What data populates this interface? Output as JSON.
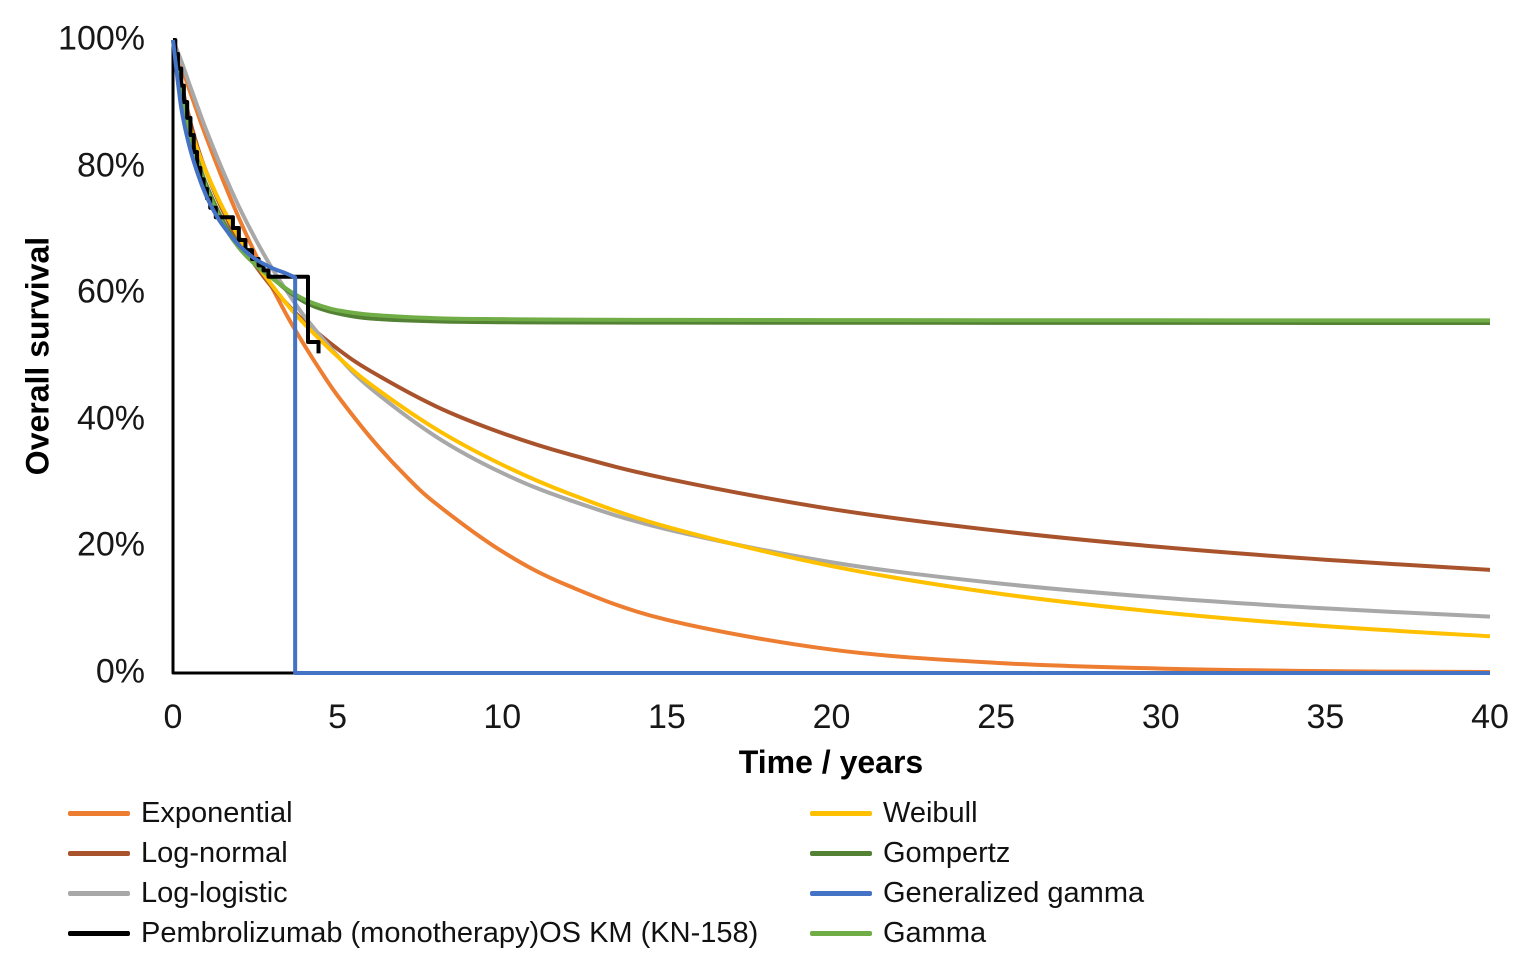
{
  "chart_data": {
    "type": "line",
    "title": "",
    "xlabel": "Time / years",
    "ylabel": "Overall survival",
    "xlim": [
      0,
      40
    ],
    "ylim": [
      0,
      1
    ],
    "grid": false,
    "x_ticks": [
      0,
      5,
      10,
      15,
      20,
      25,
      30,
      35,
      40
    ],
    "y_ticks": [
      "0%",
      "20%",
      "40%",
      "60%",
      "80%",
      "100%"
    ],
    "y_tick_values": [
      0,
      0.2,
      0.4,
      0.6,
      0.8,
      1.0
    ],
    "legend_position": "bottom-two-columns",
    "series": [
      {
        "name": "Exponential",
        "color": "#ED7D31",
        "style": "smooth",
        "points": [
          [
            0,
            1
          ],
          [
            0.25,
            0.96
          ],
          [
            0.5,
            0.921
          ],
          [
            0.75,
            0.884
          ],
          [
            1,
            0.848
          ],
          [
            1.5,
            0.781
          ],
          [
            2,
            0.719
          ],
          [
            2.5,
            0.662
          ],
          [
            3,
            0.61
          ],
          [
            3.5,
            0.561
          ],
          [
            4,
            0.517
          ],
          [
            4.5,
            0.476
          ],
          [
            5,
            0.438
          ],
          [
            6,
            0.372
          ],
          [
            7,
            0.315
          ],
          [
            8,
            0.267
          ],
          [
            10,
            0.192
          ],
          [
            12,
            0.138
          ],
          [
            15,
            0.084
          ],
          [
            20,
            0.037
          ],
          [
            25,
            0.016
          ],
          [
            30,
            0.007
          ],
          [
            35,
            0.003
          ],
          [
            40,
            0.0015
          ]
        ]
      },
      {
        "name": "Log-normal",
        "color": "#A9532C",
        "style": "smooth",
        "points": [
          [
            0,
            1
          ],
          [
            0.25,
            0.932
          ],
          [
            0.5,
            0.876
          ],
          [
            0.75,
            0.83
          ],
          [
            1,
            0.793
          ],
          [
            1.5,
            0.732
          ],
          [
            2,
            0.683
          ],
          [
            2.5,
            0.644
          ],
          [
            3,
            0.61
          ],
          [
            3.5,
            0.581
          ],
          [
            4,
            0.555
          ],
          [
            5,
            0.512
          ],
          [
            6,
            0.477
          ],
          [
            8,
            0.421
          ],
          [
            10,
            0.379
          ],
          [
            12,
            0.346
          ],
          [
            15,
            0.307
          ],
          [
            20,
            0.259
          ],
          [
            25,
            0.225
          ],
          [
            30,
            0.199
          ],
          [
            35,
            0.179
          ],
          [
            40,
            0.163
          ]
        ]
      },
      {
        "name": "Log-logistic",
        "color": "#A8A8A8",
        "style": "smooth",
        "points": [
          [
            0,
            1
          ],
          [
            0.25,
            0.967
          ],
          [
            0.5,
            0.93
          ],
          [
            0.75,
            0.894
          ],
          [
            1,
            0.859
          ],
          [
            1.5,
            0.795
          ],
          [
            2,
            0.737
          ],
          [
            2.5,
            0.686
          ],
          [
            3,
            0.64
          ],
          [
            3.5,
            0.6
          ],
          [
            4,
            0.563
          ],
          [
            5,
            0.501
          ],
          [
            6,
            0.45
          ],
          [
            8,
            0.373
          ],
          [
            10,
            0.316
          ],
          [
            12,
            0.274
          ],
          [
            15,
            0.227
          ],
          [
            20,
            0.175
          ],
          [
            25,
            0.142
          ],
          [
            30,
            0.119
          ],
          [
            35,
            0.102
          ],
          [
            40,
            0.089
          ]
        ]
      },
      {
        "name": "Weibull",
        "color": "#FFC000",
        "style": "smooth",
        "points": [
          [
            0,
            1
          ],
          [
            0.25,
            0.914
          ],
          [
            0.5,
            0.865
          ],
          [
            0.75,
            0.826
          ],
          [
            1,
            0.793
          ],
          [
            1.5,
            0.736
          ],
          [
            2,
            0.689
          ],
          [
            2.5,
            0.649
          ],
          [
            3,
            0.613
          ],
          [
            3.5,
            0.58
          ],
          [
            4,
            0.551
          ],
          [
            5,
            0.5
          ],
          [
            6,
            0.456
          ],
          [
            8,
            0.385
          ],
          [
            10,
            0.329
          ],
          [
            12,
            0.284
          ],
          [
            15,
            0.231
          ],
          [
            20,
            0.169
          ],
          [
            25,
            0.126
          ],
          [
            30,
            0.096
          ],
          [
            35,
            0.074
          ],
          [
            40,
            0.058
          ]
        ]
      },
      {
        "name": "Gompertz",
        "color": "#548235",
        "style": "smooth",
        "points": [
          [
            0,
            1
          ],
          [
            0.25,
            0.918
          ],
          [
            0.5,
            0.856
          ],
          [
            0.75,
            0.81
          ],
          [
            1,
            0.773
          ],
          [
            1.5,
            0.716
          ],
          [
            2,
            0.676
          ],
          [
            2.5,
            0.647
          ],
          [
            3,
            0.625
          ],
          [
            3.5,
            0.603
          ],
          [
            4,
            0.586
          ],
          [
            4.5,
            0.575
          ],
          [
            5,
            0.568
          ],
          [
            6,
            0.56
          ],
          [
            8,
            0.5555
          ],
          [
            10,
            0.5542
          ],
          [
            12,
            0.5538
          ],
          [
            15,
            0.5535
          ],
          [
            20,
            0.5533
          ],
          [
            25,
            0.5532
          ],
          [
            30,
            0.5531
          ],
          [
            35,
            0.553
          ],
          [
            40,
            0.553
          ]
        ]
      },
      {
        "name": "Gamma",
        "color": "#70AD47",
        "style": "smooth",
        "points": [
          [
            0,
            1
          ],
          [
            0.25,
            0.913
          ],
          [
            0.5,
            0.85
          ],
          [
            0.75,
            0.806
          ],
          [
            1,
            0.768
          ],
          [
            1.5,
            0.711
          ],
          [
            2,
            0.672
          ],
          [
            2.5,
            0.645
          ],
          [
            3,
            0.624
          ],
          [
            3.5,
            0.605
          ],
          [
            4,
            0.59
          ],
          [
            4.5,
            0.58
          ],
          [
            5,
            0.573
          ],
          [
            6,
            0.566
          ],
          [
            8,
            0.5605
          ],
          [
            10,
            0.559
          ],
          [
            12,
            0.5582
          ],
          [
            15,
            0.5578
          ],
          [
            20,
            0.5575
          ],
          [
            25,
            0.5573
          ],
          [
            30,
            0.5572
          ],
          [
            35,
            0.5571
          ],
          [
            40,
            0.557
          ]
        ]
      },
      {
        "name": "Pembrolizumab (monotherapy)OS KM (KN-158)",
        "color": "#000000",
        "style": "step",
        "points": [
          [
            0,
            1.0
          ],
          [
            0.07,
            0.978
          ],
          [
            0.15,
            0.955
          ],
          [
            0.25,
            0.928
          ],
          [
            0.33,
            0.902
          ],
          [
            0.43,
            0.877
          ],
          [
            0.53,
            0.85
          ],
          [
            0.63,
            0.823
          ],
          [
            0.73,
            0.798
          ],
          [
            0.83,
            0.78
          ],
          [
            0.93,
            0.765
          ],
          [
            1.03,
            0.75
          ],
          [
            1.13,
            0.735
          ],
          [
            1.3,
            0.72
          ],
          [
            1.82,
            0.703
          ],
          [
            2.0,
            0.684
          ],
          [
            2.2,
            0.668
          ],
          [
            2.4,
            0.654
          ],
          [
            2.6,
            0.644
          ],
          [
            2.75,
            0.636
          ],
          [
            2.9,
            0.626
          ],
          [
            4.1,
            0.523
          ],
          [
            4.42,
            0.523
          ],
          [
            4.42,
            0.505
          ]
        ]
      },
      {
        "name": "Generalized gamma",
        "color": "#4472C4",
        "style": "smooth-drop",
        "drop_t": 3.71,
        "points": [
          [
            0,
            1
          ],
          [
            0.25,
            0.893
          ],
          [
            0.5,
            0.832
          ],
          [
            0.75,
            0.789
          ],
          [
            1,
            0.755
          ],
          [
            1.25,
            0.729
          ],
          [
            1.5,
            0.708
          ],
          [
            2,
            0.676
          ],
          [
            2.5,
            0.654
          ],
          [
            3,
            0.64
          ],
          [
            3.4,
            0.632
          ],
          [
            3.71,
            0.625
          ]
        ]
      }
    ],
    "legend": {
      "left": [
        {
          "name": "Exponential",
          "color": "#ED7D31"
        },
        {
          "name": "Log-normal",
          "color": "#A9532C"
        },
        {
          "name": "Log-logistic",
          "color": "#A8A8A8"
        },
        {
          "name": "Pembrolizumab (monotherapy)OS KM (KN-158)",
          "color": "#000000"
        }
      ],
      "right": [
        {
          "name": "Weibull",
          "color": "#FFC000"
        },
        {
          "name": "Gompertz",
          "color": "#548235"
        },
        {
          "name": "Generalized gamma",
          "color": "#4472C4"
        },
        {
          "name": "Gamma",
          "color": "#70AD47"
        }
      ]
    }
  }
}
